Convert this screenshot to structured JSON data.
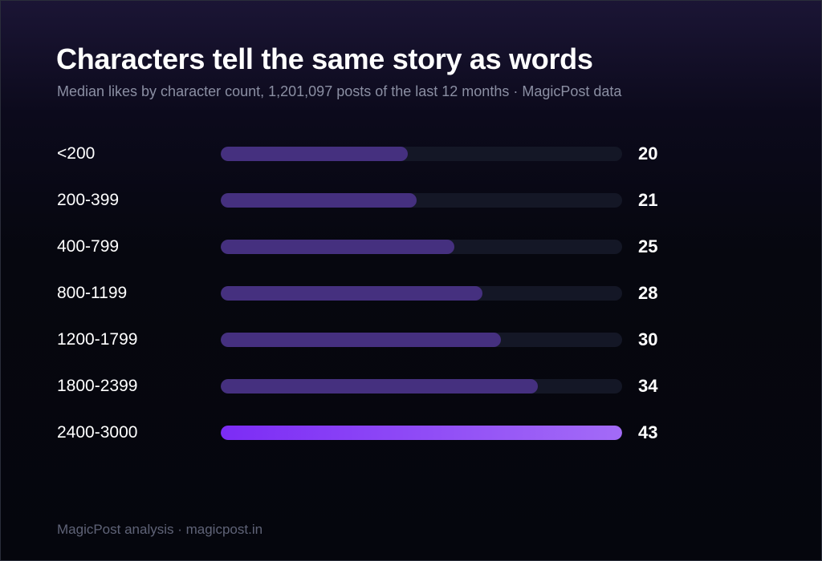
{
  "title": "Characters tell the same story as words",
  "subtitle": "Median likes by character count, 1,201,097 posts of the last 12 months · MagicPost data",
  "footer": "MagicPost analysis · magicpost.in",
  "colors": {
    "bar": "#45307f",
    "bar_highlight_start": "#7c2cf5",
    "bar_highlight_end": "#a36bf7",
    "track": "#141726"
  },
  "chart_data": {
    "type": "bar",
    "orientation": "horizontal",
    "title": "Characters tell the same story as words",
    "subtitle": "Median likes by character count, 1,201,097 posts of the last 12 months · MagicPost data",
    "categories": [
      "<200",
      "200-399",
      "400-799",
      "800-1199",
      "1200-1799",
      "1800-2399",
      "2400-3000"
    ],
    "values": [
      20,
      21,
      25,
      28,
      30,
      34,
      43
    ],
    "labels": [
      "20",
      "21",
      "25",
      "28",
      "30",
      "34",
      "43"
    ],
    "xlim": [
      0,
      43
    ],
    "highlight": "2400-3000",
    "grid": false,
    "legend": "none"
  }
}
